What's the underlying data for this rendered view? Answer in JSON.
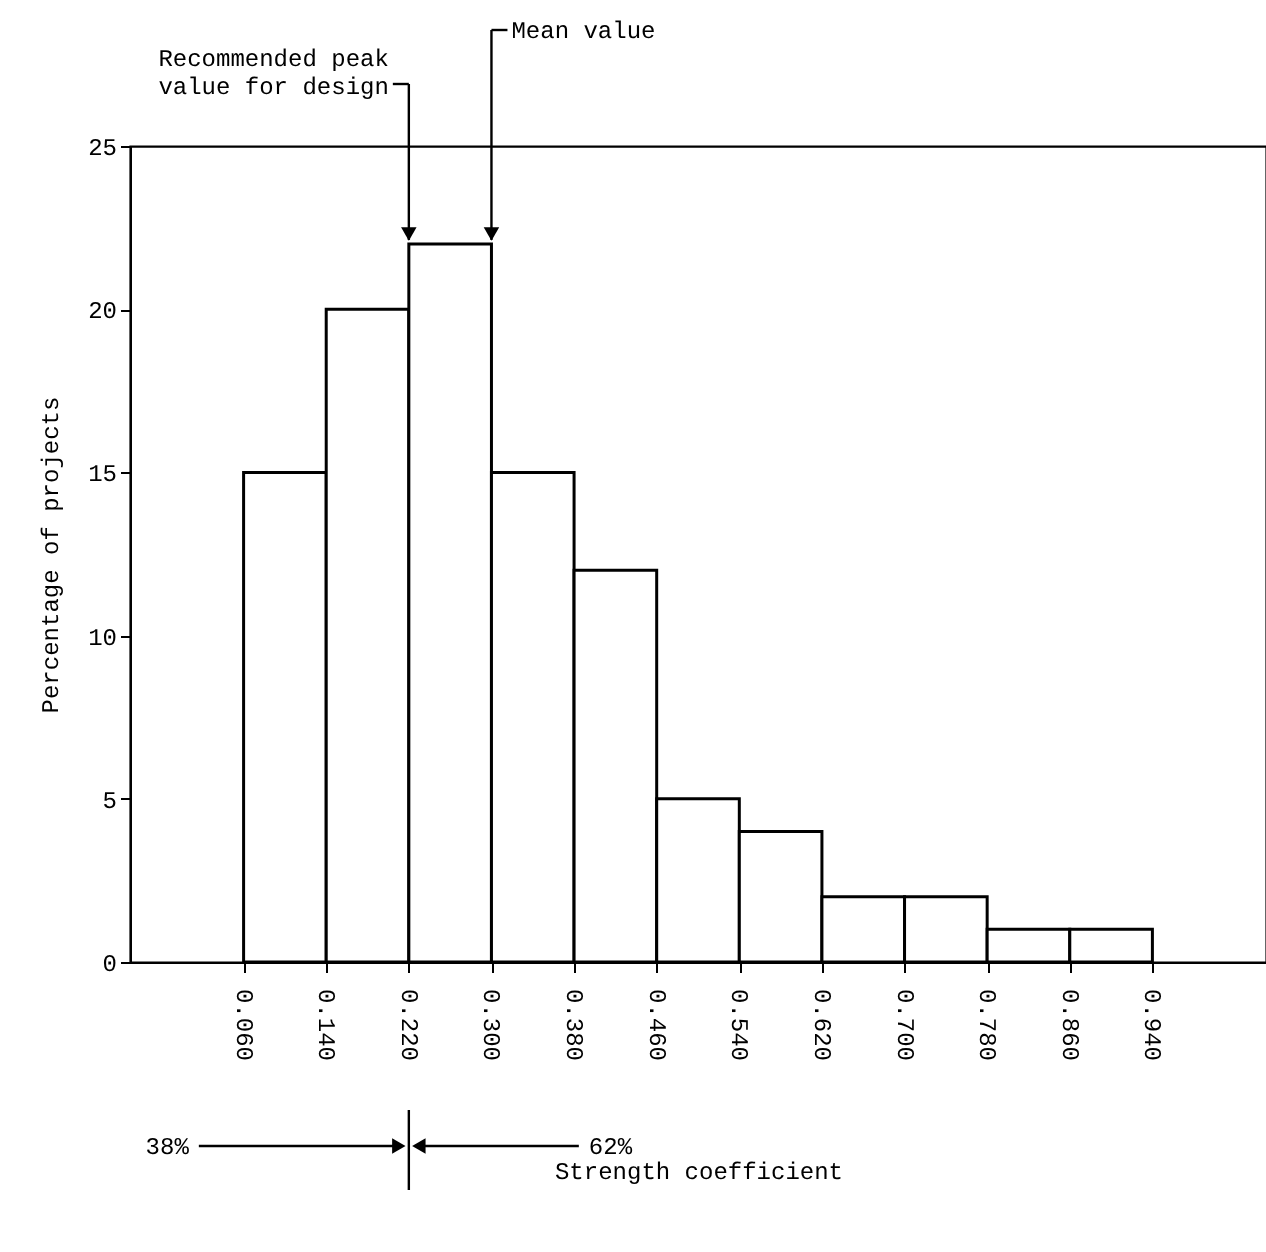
{
  "chart_data": {
    "type": "histogram",
    "xlabel": "Strength coefficient",
    "ylabel": "Percentage of projects",
    "bins": [
      0.06,
      0.14,
      0.22,
      0.3,
      0.38,
      0.46,
      0.54,
      0.62,
      0.7,
      0.78,
      0.86,
      0.94
    ],
    "values": [
      15,
      20,
      22,
      15,
      12,
      5,
      4,
      2,
      2,
      1,
      1
    ],
    "color": "#ffffff",
    "xlim": [
      -0.05,
      1.05
    ],
    "xticks": [
      {
        "value": 0.06,
        "label": "0.060"
      },
      {
        "value": 0.14,
        "label": "0.140"
      },
      {
        "value": 0.22,
        "label": "0.220"
      },
      {
        "value": 0.3,
        "label": "0.300"
      },
      {
        "value": 0.38,
        "label": "0.380"
      },
      {
        "value": 0.46,
        "label": "0.460"
      },
      {
        "value": 0.54,
        "label": "0.540"
      },
      {
        "value": 0.62,
        "label": "0.620"
      },
      {
        "value": 0.7,
        "label": "0.700"
      },
      {
        "value": 0.78,
        "label": "0.780"
      },
      {
        "value": 0.86,
        "label": "0.860"
      },
      {
        "value": 0.94,
        "label": "0.940"
      }
    ],
    "ylim": [
      0,
      25
    ],
    "yticks": [
      0,
      5,
      10,
      15,
      20,
      25
    ],
    "grid": false,
    "legend": false,
    "annotations": [
      {
        "text": "Recommended peak value for design",
        "x": 0.22,
        "y": 22
      },
      {
        "text": "Mean value",
        "x": 0.3,
        "y": 22
      },
      "38%",
      "62%"
    ]
  }
}
